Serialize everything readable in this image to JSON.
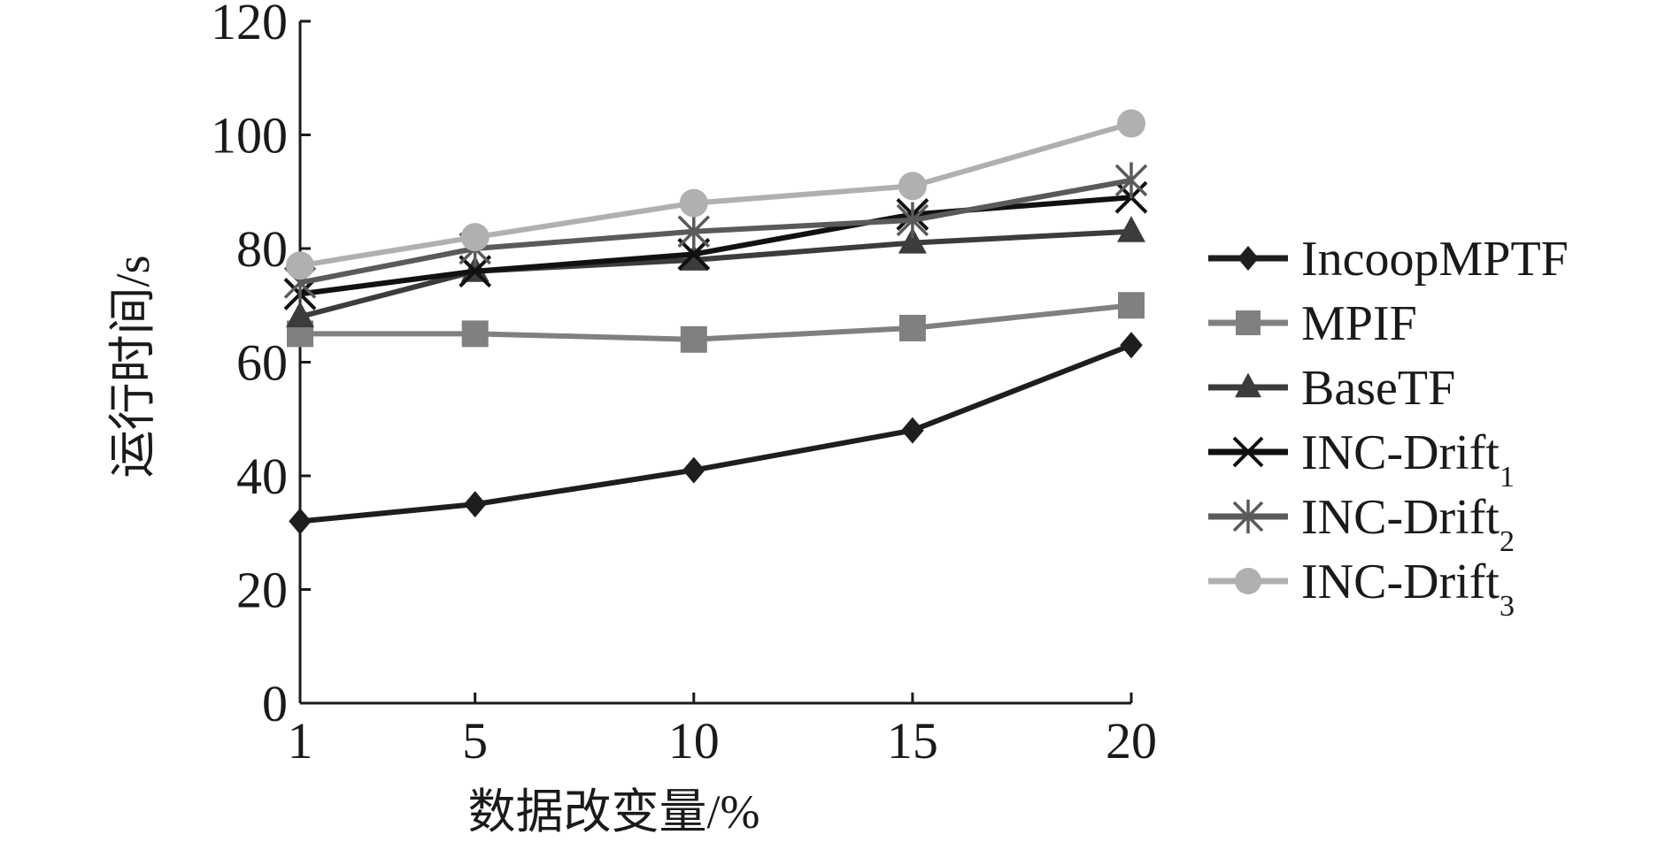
{
  "chart_data": {
    "type": "line",
    "title": "",
    "xlabel": "数据改变量/%",
    "ylabel": "运行时间/s",
    "x": [
      1,
      5,
      10,
      15,
      20
    ],
    "xticks": [
      "1",
      "5",
      "10",
      "15",
      "20"
    ],
    "yticks": [
      "0",
      "20",
      "40",
      "60",
      "80",
      "100",
      "120"
    ],
    "xlim": [
      1,
      20
    ],
    "ylim": [
      0,
      120
    ],
    "grid": false,
    "legend_position": "right",
    "series": [
      {
        "name": "IncoopMPTF",
        "name_main": "IncoopMPTF",
        "name_sub": "",
        "marker": "diamond",
        "color": "#1e1e1e",
        "values": [
          32,
          35,
          41,
          48,
          63
        ]
      },
      {
        "name": "MPIF",
        "name_main": "MPIF",
        "name_sub": "",
        "marker": "square",
        "color": "#808080",
        "values": [
          65,
          65,
          64,
          66,
          70
        ]
      },
      {
        "name": "BaseTF",
        "name_main": "BaseTF",
        "name_sub": "",
        "marker": "triangle",
        "color": "#3c3c3c",
        "values": [
          68,
          76,
          78,
          81,
          83
        ]
      },
      {
        "name": "INC-Drift1",
        "name_main": "INC-Drift",
        "name_sub": "1",
        "marker": "x",
        "color": "#111111",
        "values": [
          72,
          76,
          79,
          86,
          89
        ]
      },
      {
        "name": "INC-Drift2",
        "name_main": "INC-Drift",
        "name_sub": "2",
        "marker": "star",
        "color": "#5a5a5a",
        "values": [
          74,
          80,
          83,
          85,
          92
        ]
      },
      {
        "name": "INC-Drift3",
        "name_main": "INC-Drift",
        "name_sub": "3",
        "marker": "circle",
        "color": "#b0b0b0",
        "values": [
          77,
          82,
          88,
          91,
          102
        ]
      }
    ]
  }
}
